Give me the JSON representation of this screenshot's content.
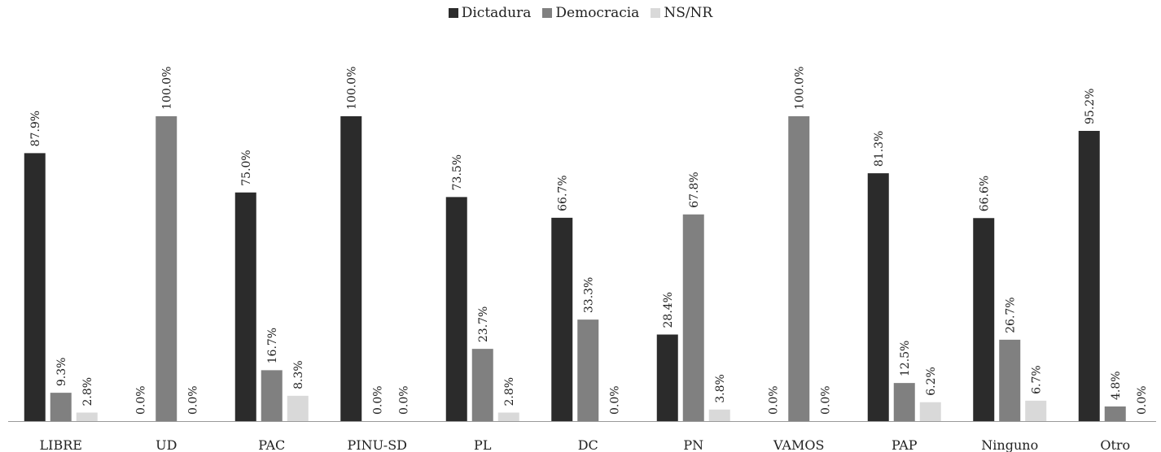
{
  "chart_data": {
    "type": "bar",
    "categories": [
      "LIBRE",
      "UD",
      "PAC",
      "PINU-SD",
      "PL",
      "DC",
      "PN",
      "VAMOS",
      "PAP",
      "Ninguno",
      "Otro"
    ],
    "series": [
      {
        "name": "Dictadura",
        "color": "#2b2b2b",
        "values": [
          87.9,
          0.0,
          75.0,
          100.0,
          73.5,
          66.7,
          28.4,
          0.0,
          81.3,
          66.6,
          95.2
        ]
      },
      {
        "name": "Democracia",
        "color": "#808080",
        "values": [
          9.3,
          100.0,
          16.7,
          0.0,
          23.7,
          33.3,
          67.8,
          100.0,
          12.5,
          26.7,
          4.8
        ]
      },
      {
        "name": "NS/NR",
        "color": "#d9d9d9",
        "values": [
          2.8,
          0.0,
          8.3,
          0.0,
          2.8,
          0.0,
          3.8,
          0.0,
          6.2,
          6.7,
          0.0
        ]
      }
    ],
    "data_labels": [
      [
        "87.9%",
        "0.0%",
        "75.0%",
        "100.0%",
        "73.5%",
        "66.7%",
        "28.4%",
        "0.0%",
        "81.3%",
        "66.6%",
        "95.2%"
      ],
      [
        "9.3%",
        "100.0%",
        "16.7%",
        "0.0%",
        "23.7%",
        "33.3%",
        "67.8%",
        "100.0%",
        "12.5%",
        "26.7%",
        "4.8%"
      ],
      [
        "2.8%",
        "0.0%",
        "8.3%",
        "0.0%",
        "2.8%",
        "0.0%",
        "3.8%",
        "0.0%",
        "6.2%",
        "6.7%",
        "0.0%"
      ]
    ],
    "ylim": [
      0,
      100
    ],
    "grid": false,
    "legend_position": "top-center"
  }
}
